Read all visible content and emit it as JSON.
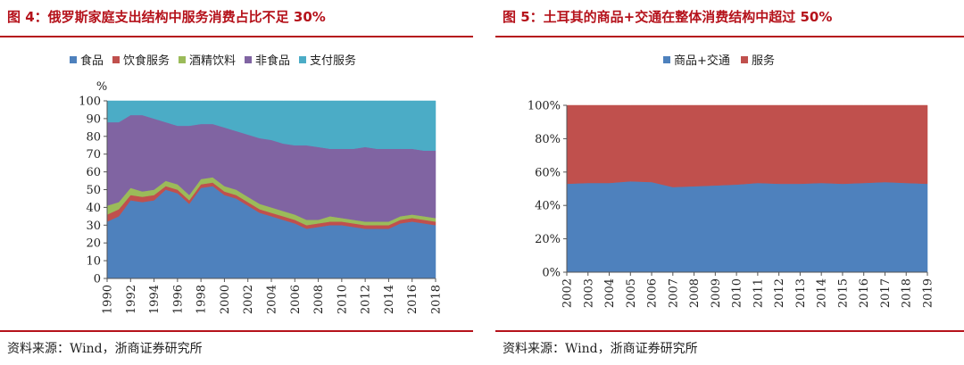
{
  "chart_data": [
    {
      "type": "area",
      "stacked": true,
      "title": "图 4：俄罗斯家庭支出结构中服务消费占比不足 30%",
      "source": "资料来源：Wind，浙商证券研究所",
      "ylabel": "%",
      "ylim": [
        0,
        100
      ],
      "yticks": [
        0,
        10,
        20,
        30,
        40,
        50,
        60,
        70,
        80,
        90,
        100
      ],
      "x": [
        1990,
        1991,
        1992,
        1993,
        1994,
        1995,
        1996,
        1997,
        1998,
        1999,
        2000,
        2001,
        2002,
        2003,
        2004,
        2005,
        2006,
        2007,
        2008,
        2009,
        2010,
        2011,
        2012,
        2013,
        2014,
        2015,
        2016,
        2017,
        2018
      ],
      "xtick_labels": [
        "1990",
        "1992",
        "1994",
        "1996",
        "1998",
        "2000",
        "2002",
        "2004",
        "2006",
        "2008",
        "2010",
        "2012",
        "2014",
        "2016",
        "2018"
      ],
      "series": [
        {
          "name": "食品",
          "color": "#4e81bd",
          "values": [
            32,
            35,
            44,
            43,
            44,
            50,
            48,
            42,
            51,
            52,
            47,
            45,
            41,
            37,
            35,
            33,
            31,
            28,
            29,
            30,
            30,
            29,
            28,
            28,
            28,
            31,
            32,
            31,
            30
          ]
        },
        {
          "name": "饮食服务",
          "color": "#c0504d",
          "values": [
            4,
            4,
            3,
            3,
            3,
            2,
            2,
            2,
            2,
            2,
            2,
            2,
            2,
            2,
            2,
            2,
            2,
            2,
            2,
            2,
            2,
            2,
            2,
            2,
            2,
            2,
            2,
            2,
            2
          ]
        },
        {
          "name": "酒精饮料",
          "color": "#9bbb59",
          "values": [
            5,
            4,
            4,
            3,
            3,
            3,
            3,
            3,
            3,
            3,
            3,
            3,
            3,
            3,
            3,
            3,
            3,
            3,
            2,
            3,
            2,
            2,
            2,
            2,
            2,
            2,
            2,
            2,
            2
          ]
        },
        {
          "name": "非食品",
          "color": "#8064a2",
          "values": [
            47,
            45,
            41,
            43,
            40,
            33,
            33,
            39,
            31,
            30,
            33,
            33,
            35,
            37,
            38,
            38,
            39,
            42,
            41,
            38,
            39,
            40,
            42,
            41,
            41,
            38,
            37,
            37,
            38
          ]
        },
        {
          "name": "支付服务",
          "color": "#4bacc6",
          "values": [
            12,
            12,
            8,
            8,
            10,
            12,
            14,
            14,
            13,
            13,
            15,
            17,
            19,
            21,
            22,
            24,
            25,
            25,
            26,
            27,
            27,
            27,
            26,
            27,
            27,
            27,
            27,
            28,
            28
          ]
        }
      ]
    },
    {
      "type": "area",
      "stacked": true,
      "title": "图 5：土耳其的商品+交通在整体消费结构中超过 50%",
      "source": "资料来源：Wind，浙商证券研究所",
      "ylim": [
        0,
        100
      ],
      "yticks": [
        "0%",
        "20%",
        "40%",
        "60%",
        "80%",
        "100%"
      ],
      "x": [
        2002,
        2003,
        2004,
        2005,
        2006,
        2007,
        2008,
        2009,
        2010,
        2011,
        2012,
        2013,
        2014,
        2015,
        2016,
        2017,
        2018,
        2019
      ],
      "xtick_labels": [
        "2002",
        "2003",
        "2004",
        "2005",
        "2006",
        "2007",
        "2008",
        "2009",
        "2010",
        "2011",
        "2012",
        "2013",
        "2014",
        "2015",
        "2016",
        "2017",
        "2018",
        "2019"
      ],
      "series": [
        {
          "name": "商品+交通",
          "color": "#4e81bd",
          "values": [
            53,
            53.5,
            53.5,
            54.5,
            54,
            51,
            51.5,
            52,
            52.5,
            53.5,
            53,
            53,
            53.5,
            53,
            53.5,
            54,
            53.5,
            53
          ]
        },
        {
          "name": "服务",
          "color": "#c0504d",
          "values": [
            47,
            46.5,
            46.5,
            45.5,
            46,
            49,
            48.5,
            48,
            47.5,
            46.5,
            47,
            47,
            46.5,
            47,
            46.5,
            46,
            46.5,
            47
          ]
        }
      ]
    }
  ]
}
